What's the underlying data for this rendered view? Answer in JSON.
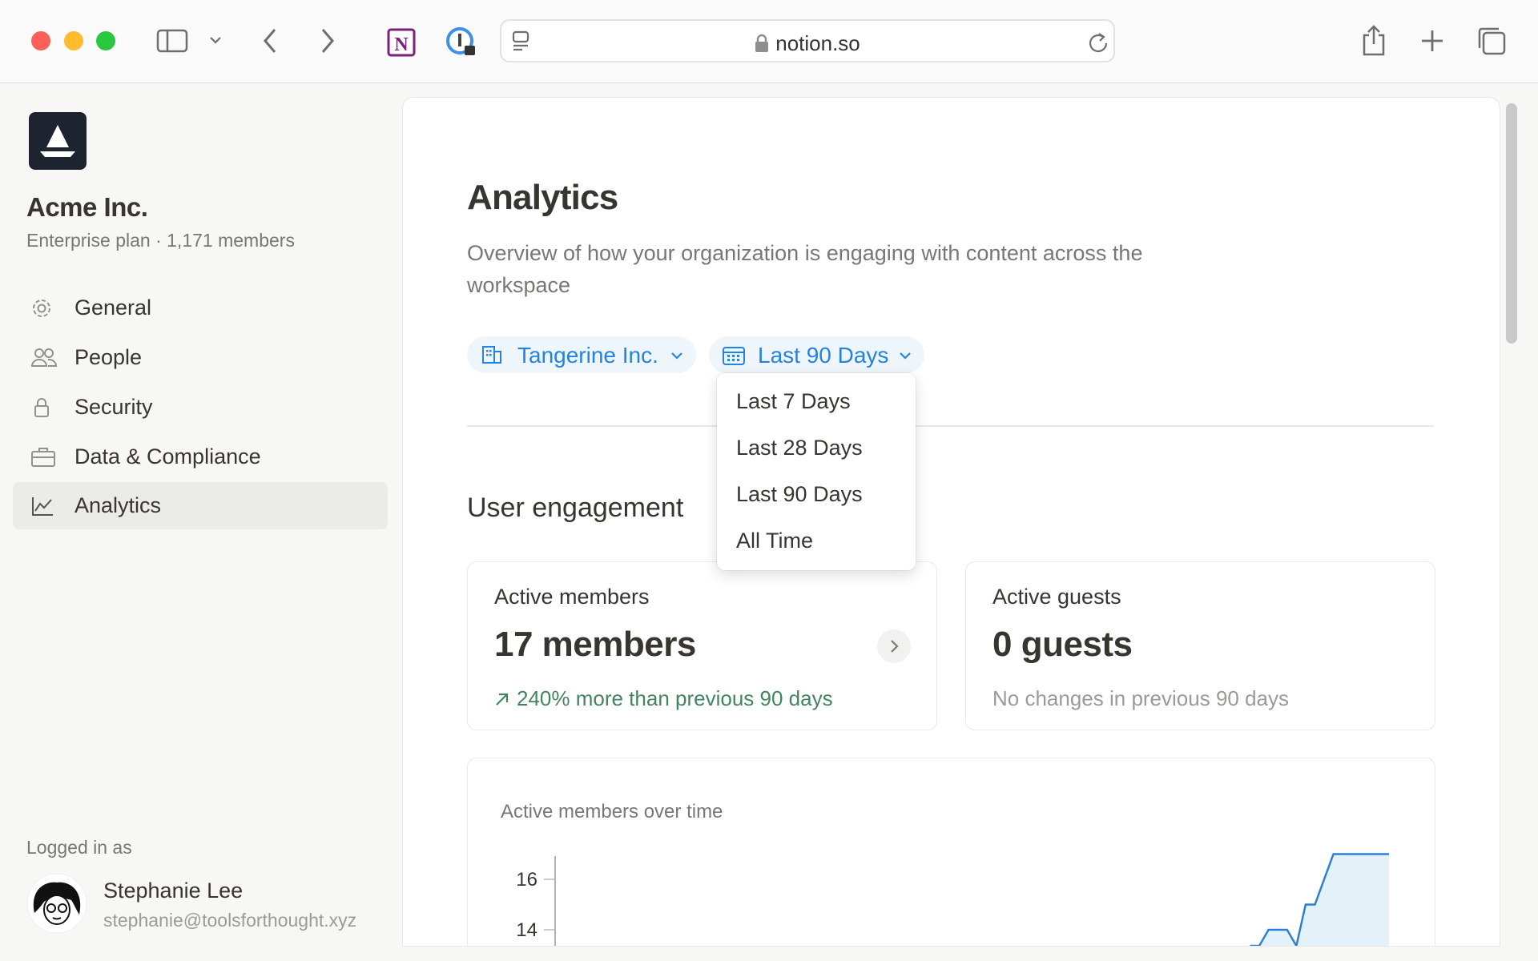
{
  "browser": {
    "url": "notion.so",
    "icons": [
      "sidebar-toggle-icon",
      "chevron-down-icon",
      "back-icon",
      "forward-icon",
      "notion-extension-icon",
      "password-manager-icon",
      "reader-icon",
      "lock-icon",
      "reload-icon",
      "share-icon",
      "new-tab-icon",
      "tab-overview-icon"
    ]
  },
  "sidebar": {
    "org_name": "Acme Inc.",
    "org_meta": "Enterprise plan · 1,171 members",
    "items": [
      {
        "label": "General",
        "icon": "gear-icon"
      },
      {
        "label": "People",
        "icon": "people-icon"
      },
      {
        "label": "Security",
        "icon": "lock-icon"
      },
      {
        "label": "Data & Compliance",
        "icon": "briefcase-icon"
      },
      {
        "label": "Analytics",
        "icon": "chart-icon",
        "active": true
      }
    ],
    "logged_in_label": "Logged in as",
    "user_name": "Stephanie Lee",
    "user_email": "stephanie@toolsforthought.xyz"
  },
  "main": {
    "title": "Analytics",
    "description": "Overview of how your organization is engaging with content across the workspace",
    "filters": {
      "workspace": "Tangerine Inc.",
      "range": "Last 90 Days"
    },
    "range_options": [
      "Last 7 Days",
      "Last 28 Days",
      "Last 90 Days",
      "All Time"
    ],
    "section_title": "User engagement",
    "cards": [
      {
        "label": "Active members",
        "value": "17 members",
        "change": "240% more than previous 90 days",
        "trend": "up"
      },
      {
        "label": "Active guests",
        "value": "0 guests",
        "change": "No changes in previous 90 days",
        "trend": "none"
      }
    ]
  },
  "colors": {
    "accent": "#2383e2",
    "positive": "#448361",
    "muted": "#9b9a97",
    "chart_line": "#2f7fd1",
    "chart_fill": "#e3f1f9"
  },
  "chart_data": {
    "type": "area",
    "title": "Active members over time",
    "xlabel": "",
    "ylabel": "",
    "yticks": [
      14,
      16
    ],
    "xlim": [
      0,
      90
    ],
    "grid": false,
    "points": [
      [
        75,
        12
      ],
      [
        76,
        12
      ],
      [
        77,
        14
      ],
      [
        79,
        14
      ],
      [
        80,
        12
      ],
      [
        81,
        15
      ],
      [
        82,
        15
      ],
      [
        84,
        17
      ],
      [
        90,
        17
      ]
    ]
  }
}
